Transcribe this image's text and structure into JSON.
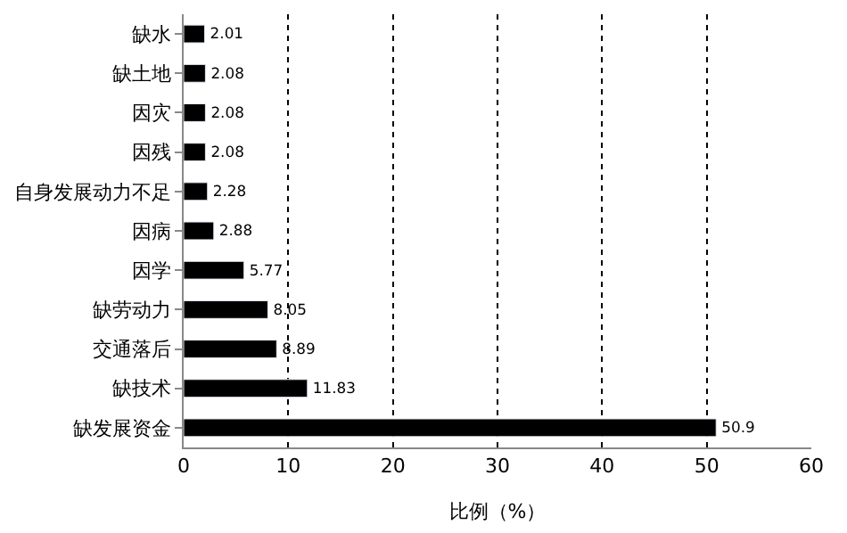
{
  "chart_data": {
    "type": "bar",
    "orientation": "horizontal",
    "categories": [
      "缺水",
      "缺土地",
      "因灾",
      "因残",
      "自身发展动力不足",
      "因病",
      "因学",
      "缺劳动力",
      "交通落后",
      "缺技术",
      "缺发展资金"
    ],
    "values": [
      2.01,
      2.08,
      2.08,
      2.08,
      2.28,
      2.88,
      5.77,
      8.05,
      8.89,
      11.83,
      50.9
    ],
    "color": "#000000",
    "xlim": [
      0,
      60
    ],
    "xticks": [
      0,
      10,
      20,
      30,
      40,
      50,
      60
    ],
    "xlabel": "比例（%）",
    "grid": "x",
    "data_labels": true
  }
}
